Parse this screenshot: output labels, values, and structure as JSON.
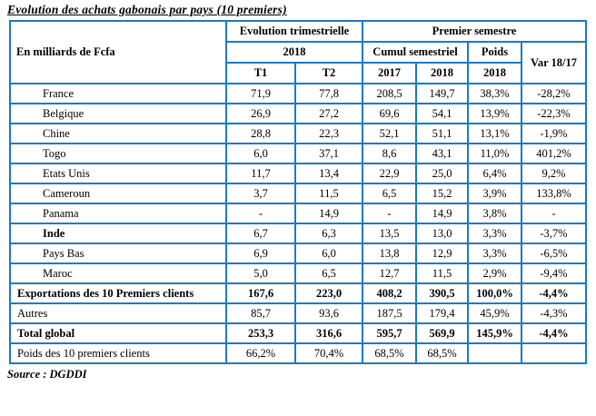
{
  "title": "Evolution des achats gabonais par pays (10 premiers)",
  "source_note": "Source : DGDDI",
  "colors": {
    "border_blue": "#1b7ac2",
    "text": "#000000",
    "background": "#ffffff"
  },
  "table": {
    "unit_label": "En milliards de Fcfa",
    "header": {
      "evolution_group": "Evolution trimestrielle",
      "semestre_group": "Premier semestre",
      "year_2018": "2018",
      "cumul_group": "Cumul semestriel",
      "poids": "Poids",
      "var_label": "Var 18/17",
      "t1": "T1",
      "t2": "T2",
      "cumul_2017": "2017",
      "cumul_2018": "2018",
      "poids_2018": "2018"
    },
    "rows": [
      {
        "label": "France",
        "values": [
          "71,9",
          "77,8",
          "208,5",
          "149,7",
          "38,3%",
          "-28,2%"
        ],
        "indent": true,
        "bold": false,
        "label_bold": false
      },
      {
        "label": "Belgique",
        "values": [
          "26,9",
          "27,2",
          "69,6",
          "54,1",
          "13,9%",
          "-22,3%"
        ],
        "indent": true,
        "bold": false,
        "label_bold": false
      },
      {
        "label": "Chine",
        "values": [
          "28,8",
          "22,3",
          "52,1",
          "51,1",
          "13,1%",
          "-1,9%"
        ],
        "indent": true,
        "bold": false,
        "label_bold": false
      },
      {
        "label": "Togo",
        "values": [
          "6,0",
          "37,1",
          "8,6",
          "43,1",
          "11,0%",
          "401,2%"
        ],
        "indent": true,
        "bold": false,
        "label_bold": false
      },
      {
        "label": "Etats Unis",
        "values": [
          "11,7",
          "13,4",
          "22,9",
          "25,0",
          "6,4%",
          "9,2%"
        ],
        "indent": true,
        "bold": false,
        "label_bold": false
      },
      {
        "label": "Cameroun",
        "values": [
          "3,7",
          "11,5",
          "6,5",
          "15,2",
          "3,9%",
          "133,8%"
        ],
        "indent": true,
        "bold": false,
        "label_bold": false
      },
      {
        "label": "Panama",
        "values": [
          "-",
          "14,9",
          "-",
          "14,9",
          "3,8%",
          "-"
        ],
        "indent": true,
        "bold": false,
        "label_bold": false
      },
      {
        "label": "Inde",
        "values": [
          "6,7",
          "6,3",
          "13,5",
          "13,0",
          "3,3%",
          "-3,7%"
        ],
        "indent": true,
        "bold": false,
        "label_bold": true
      },
      {
        "label": "Pays Bas",
        "values": [
          "6,9",
          "6,0",
          "13,8",
          "12,9",
          "3,3%",
          "-6,5%"
        ],
        "indent": true,
        "bold": false,
        "label_bold": false
      },
      {
        "label": "Maroc",
        "values": [
          "5,0",
          "6,5",
          "12,7",
          "11,5",
          "2,9%",
          "-9,4%"
        ],
        "indent": true,
        "bold": false,
        "label_bold": false
      },
      {
        "label": "Exportations des 10 Premiers clients",
        "values": [
          "167,6",
          "223,0",
          "408,2",
          "390,5",
          "100,0%",
          "-4,4%"
        ],
        "indent": false,
        "bold": true,
        "label_bold": true
      },
      {
        "label": "Autres",
        "values": [
          "85,7",
          "93,6",
          "187,5",
          "179,4",
          "45,9%",
          "-4,3%"
        ],
        "indent": false,
        "bold": false,
        "label_bold": false
      },
      {
        "label": "Total global",
        "values": [
          "253,3",
          "316,6",
          "595,7",
          "569,9",
          "145,9%",
          "-4,4%"
        ],
        "indent": false,
        "bold": true,
        "label_bold": true
      },
      {
        "label": "Poids des 10 premiers clients",
        "values": [
          "66,2%",
          "70,4%",
          "68,5%",
          "68,5%",
          "",
          ""
        ],
        "indent": false,
        "bold": false,
        "label_bold": false
      }
    ]
  }
}
